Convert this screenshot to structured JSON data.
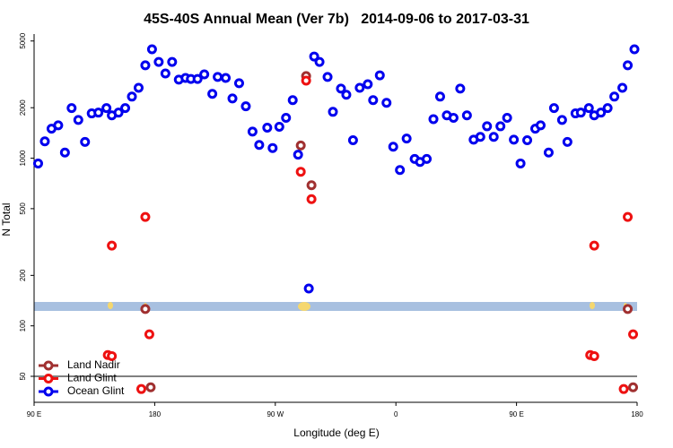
{
  "chart_data": {
    "type": "scatter",
    "title": "45S-40S Annual Mean (Ver 7b)   2014-09-06 to 2017-03-31",
    "xlabel": "Longitude (deg E)",
    "ylabel": "N Total",
    "xlim": [
      90,
      540
    ],
    "ylim": [
      35,
      5500
    ],
    "log_y": true,
    "legend": "lower left",
    "xticks": [
      {
        "value": 90,
        "label": "90 E"
      },
      180,
      {
        "value": 270,
        "label": "90 W"
      },
      {
        "value": 360,
        "label": "0"
      },
      {
        "value": 450,
        "label": "90 E"
      },
      {
        "value": 540,
        "label": "180"
      }
    ],
    "yticks": [
      50,
      100,
      200,
      500,
      1000,
      2000,
      5000
    ],
    "series": [
      {
        "name": "Land Nadir",
        "color": "#a03030",
        "x": [
          173,
          177,
          289,
          293,
          297,
          533,
          537
        ],
        "values": [
          126,
          43,
          1190,
          3090,
          690,
          126,
          43
        ]
      },
      {
        "name": "Land Glint",
        "color": "#ee1111",
        "x": [
          145,
          148,
          148,
          170,
          173,
          176,
          289,
          293,
          297,
          505,
          508,
          508,
          530,
          533,
          537
        ],
        "values": [
          67,
          301,
          66,
          42,
          446,
          89,
          830,
          2900,
          570,
          67,
          301,
          66,
          42,
          446,
          89
        ]
      },
      {
        "name": "Ocean Glint",
        "color": "#0000ee",
        "x": [
          93,
          98,
          103,
          108,
          113,
          118,
          123,
          128,
          133,
          138,
          144,
          148,
          153,
          158,
          163,
          168,
          173,
          178,
          183,
          188,
          193,
          198,
          203,
          207,
          212,
          217,
          223,
          227,
          233,
          238,
          243,
          248,
          253,
          258,
          264,
          268,
          273,
          278,
          283,
          287,
          295,
          299,
          303,
          309,
          313,
          319,
          323,
          328,
          333,
          339,
          343,
          348,
          353,
          358,
          363,
          368,
          374,
          378,
          383,
          388,
          393,
          398,
          403,
          408,
          413,
          418,
          423,
          428,
          433,
          438,
          443,
          448,
          453,
          458,
          464,
          468,
          474,
          478,
          484,
          488,
          494,
          498,
          504,
          508,
          513,
          518,
          523,
          529,
          533,
          538
        ],
        "values": [
          930,
          1260,
          1500,
          1570,
          1080,
          1990,
          1690,
          1250,
          1850,
          1870,
          1990,
          1800,
          1870,
          1990,
          2330,
          2630,
          3580,
          4460,
          3750,
          3200,
          3750,
          2940,
          3010,
          2970,
          2970,
          3160,
          2420,
          3050,
          3010,
          2270,
          2800,
          2040,
          1440,
          1200,
          1520,
          1150,
          1540,
          1740,
          2220,
          1050,
          167,
          4040,
          3750,
          3050,
          1890,
          2600,
          2390,
          1280,
          2630,
          2760,
          2220,
          3120,
          2140,
          1170,
          850,
          1310,
          990,
          950,
          990,
          1710,
          2330,
          1800,
          1740,
          2600,
          1800,
          1290,
          1340,
          1550,
          1340,
          1550,
          1740,
          1290,
          930,
          1280,
          1500,
          1570,
          1080,
          1990,
          1690,
          1250,
          1850,
          1870,
          1990,
          1800,
          1870,
          1990,
          2330,
          2630,
          3580,
          4460
        ]
      }
    ]
  }
}
